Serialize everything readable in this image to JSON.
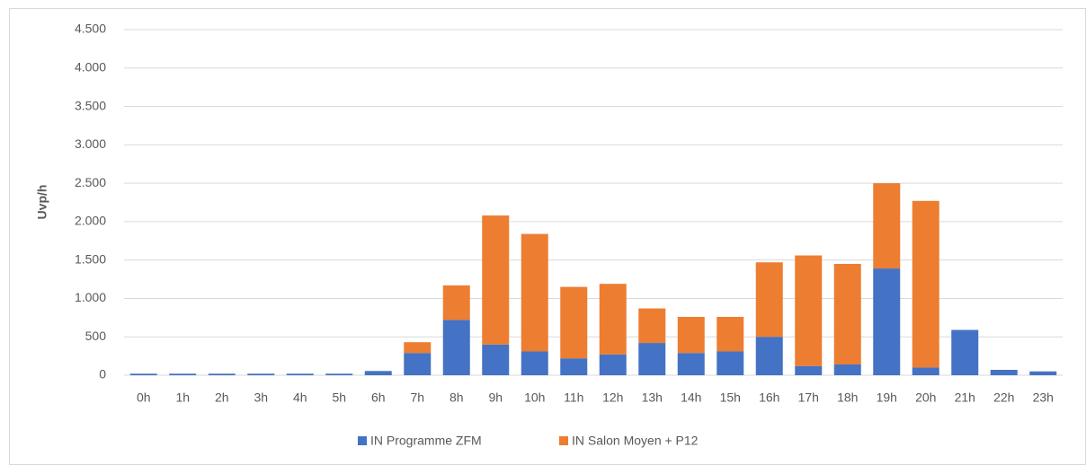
{
  "chart_data": {
    "type": "stacked_bar",
    "y_label": "Uvp/h",
    "categories": [
      "0h",
      "1h",
      "2h",
      "3h",
      "4h",
      "5h",
      "6h",
      "7h",
      "8h",
      "9h",
      "10h",
      "11h",
      "12h",
      "13h",
      "14h",
      "15h",
      "16h",
      "17h",
      "18h",
      "19h",
      "20h",
      "21h",
      "22h",
      "23h"
    ],
    "series": [
      {
        "name": "IN Programme ZFM",
        "color": "#4472c4",
        "values": [
          20,
          20,
          20,
          20,
          20,
          20,
          55,
          290,
          720,
          400,
          310,
          220,
          270,
          420,
          290,
          310,
          500,
          120,
          140,
          1390,
          100,
          590,
          70,
          50
        ]
      },
      {
        "name": "IN Salon Moyen + P12",
        "color": "#ed7d31",
        "values": [
          0,
          0,
          0,
          0,
          0,
          0,
          0,
          140,
          450,
          1680,
          1530,
          930,
          920,
          450,
          470,
          450,
          970,
          1440,
          1310,
          1110,
          2170,
          0,
          0,
          0
        ]
      }
    ],
    "ylim": [
      0,
      4500
    ],
    "yticks": [
      0,
      500,
      {
        "value": 1000,
        "label": "1.000"
      },
      {
        "value": 1500,
        "label": "1.500"
      },
      {
        "value": 2000,
        "label": "2.000"
      },
      {
        "value": 2500,
        "label": "2.500"
      },
      {
        "value": 3000,
        "label": "3.000"
      },
      {
        "value": 3500,
        "label": "3.500"
      },
      {
        "value": 4000,
        "label": "4.000"
      },
      {
        "value": 4500,
        "label": "4.500"
      }
    ],
    "grid": true,
    "legend": "bottom"
  }
}
